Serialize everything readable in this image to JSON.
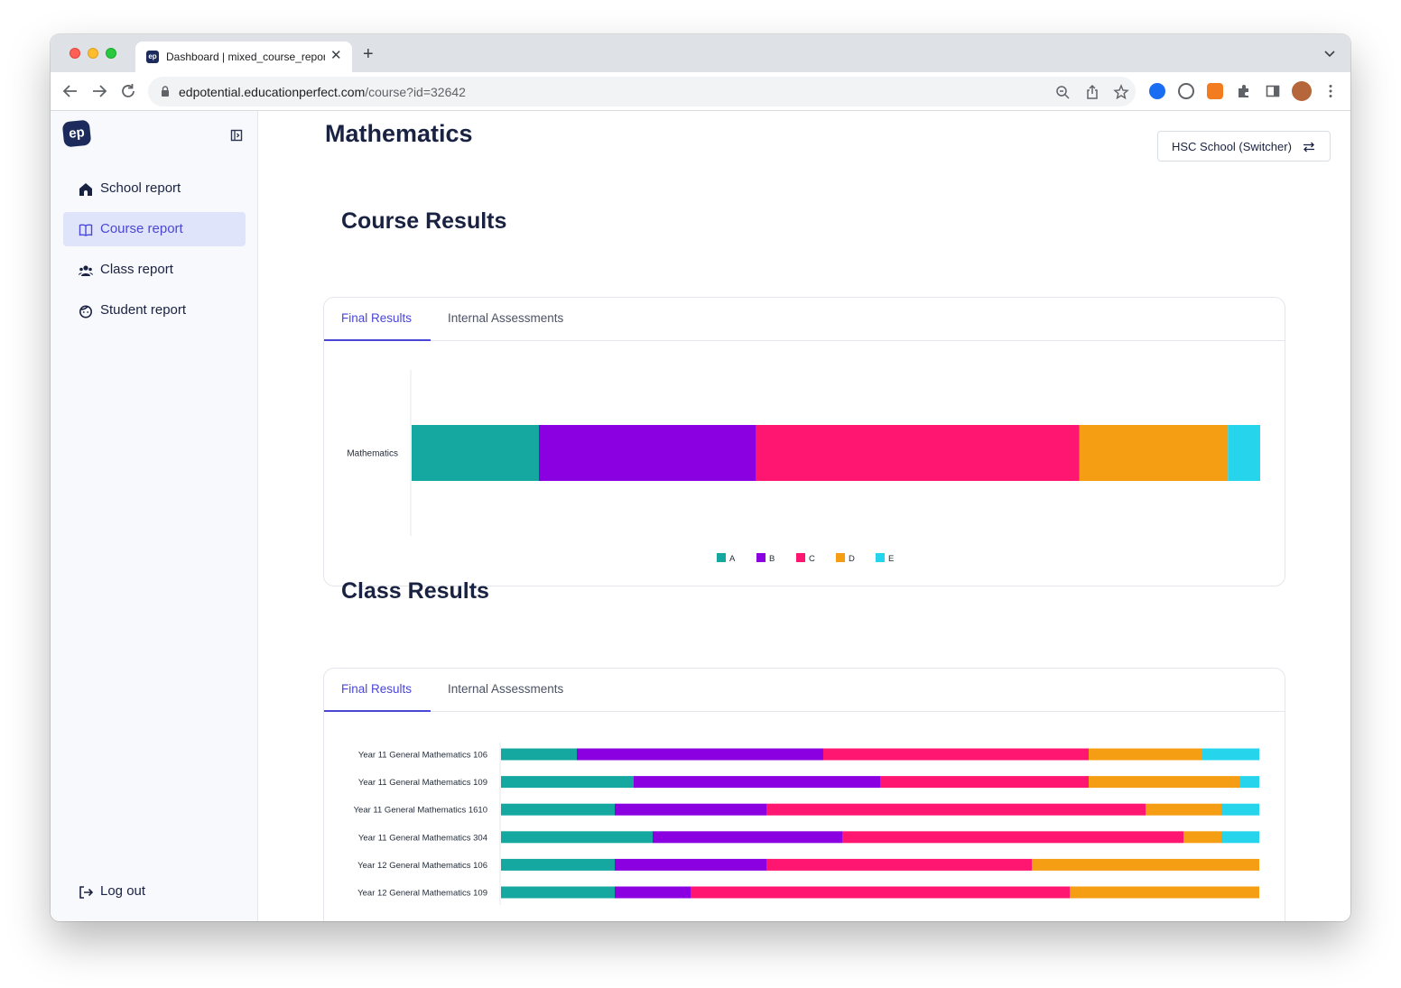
{
  "browser": {
    "tab_title": "Dashboard | mixed_course_report",
    "tab_favicon_text": "ep",
    "url_host": "edpotential.educationperfect.com",
    "url_path": "/course?id=32642"
  },
  "sidebar": {
    "logo_text": "ep",
    "items": [
      {
        "label": "School report",
        "icon": "school-icon",
        "active": false
      },
      {
        "label": "Course report",
        "icon": "book-icon",
        "active": true
      },
      {
        "label": "Class report",
        "icon": "class-icon",
        "active": false
      },
      {
        "label": "Student report",
        "icon": "student-face-icon",
        "active": false
      }
    ],
    "logout_label": "Log out"
  },
  "header": {
    "title": "Mathematics",
    "switcher_label": "HSC School (Switcher)"
  },
  "course_results": {
    "title": "Course Results",
    "tabs": [
      "Final Results",
      "Internal Assessments"
    ],
    "active_tab": 0
  },
  "class_results": {
    "title": "Class Results",
    "tabs": [
      "Final Results",
      "Internal Assessments"
    ],
    "active_tab": 0
  },
  "colors": {
    "A": "#14a8a0",
    "B": "#8b00e0",
    "C": "#ff1670",
    "D": "#f59e13",
    "E": "#26d4ec",
    "accent": "#4a46d6"
  },
  "chart_data": [
    {
      "type": "bar",
      "orientation": "horizontal",
      "stacked": true,
      "categories": [
        "Mathematics"
      ],
      "series": [
        {
          "name": "A",
          "values": [
            15
          ]
        },
        {
          "name": "B",
          "values": [
            25.6
          ]
        },
        {
          "name": "C",
          "values": [
            38.1
          ]
        },
        {
          "name": "D",
          "values": [
            17.5
          ]
        },
        {
          "name": "E",
          "values": [
            3.8
          ]
        }
      ],
      "legend": "bottom-center"
    },
    {
      "type": "bar",
      "orientation": "horizontal",
      "stacked": true,
      "categories": [
        "Year 11 General Mathematics 106",
        "Year 11 General Mathematics 109",
        "Year 11 General Mathematics 1610",
        "Year 11 General Mathematics 304",
        "Year 12 General Mathematics 106",
        "Year 12 General Mathematics 109"
      ],
      "series": [
        {
          "name": "A",
          "values": [
            10,
            17.5,
            15,
            20,
            15,
            15
          ]
        },
        {
          "name": "B",
          "values": [
            32.5,
            32.5,
            20,
            25,
            20,
            10
          ]
        },
        {
          "name": "C",
          "values": [
            35,
            27.5,
            50,
            45,
            35,
            50
          ]
        },
        {
          "name": "D",
          "values": [
            15,
            20,
            10,
            5,
            30,
            25
          ]
        },
        {
          "name": "E",
          "values": [
            7.5,
            2.5,
            5,
            5,
            0,
            0
          ]
        }
      ],
      "legend": "bottom-center"
    }
  ]
}
